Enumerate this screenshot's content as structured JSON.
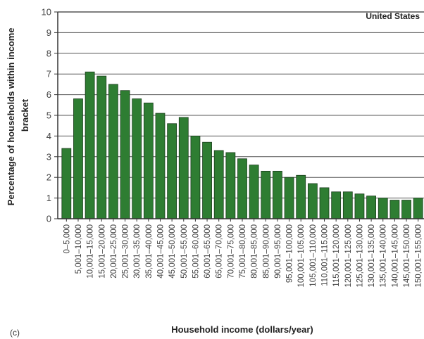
{
  "chart_data": {
    "type": "bar",
    "annotation": "United States",
    "panel_label": "(c)",
    "xlabel": "Household income (dollars/year)",
    "ylabel": [
      "Percentage of households within income",
      "bracket"
    ],
    "ylim": [
      0,
      10
    ],
    "yticks": [
      0,
      1,
      2,
      3,
      4,
      5,
      6,
      7,
      8,
      9,
      10
    ],
    "grid": "horizontal",
    "bar_color": "#2e7d32",
    "categories": [
      "0–5,000",
      "5,001–10,000",
      "10,001–15,000",
      "15,001–20,000",
      "20,001–25,000",
      "25,001–30,000",
      "30,001–35,000",
      "35,001–40,000",
      "40,001–45,000",
      "45,001–50,000",
      "50,001–55,000",
      "55,001–60,000",
      "60,001–65,000",
      "65,001–70,000",
      "70,001–75,000",
      "75,001–80,000",
      "80,001–85,000",
      "85,001–90,000",
      "90,001–95,000",
      "95,001–100,000",
      "100,001–105,000",
      "105,001–110,000",
      "110,001–115,000",
      "115,001–120,000",
      "120,001–125,000",
      "125,001–130,000",
      "130,001–135,000",
      "135,001–140,000",
      "140,001–145,000",
      "145,001–150,000",
      "150,001–155,000"
    ],
    "values": [
      3.4,
      5.8,
      7.1,
      6.9,
      6.5,
      6.2,
      5.8,
      5.6,
      5.1,
      4.6,
      4.9,
      4.0,
      3.7,
      3.3,
      3.2,
      2.9,
      2.6,
      2.3,
      2.3,
      2.0,
      2.1,
      1.7,
      1.5,
      1.3,
      1.3,
      1.2,
      1.1,
      1.0,
      0.9,
      0.9,
      1.0
    ]
  }
}
